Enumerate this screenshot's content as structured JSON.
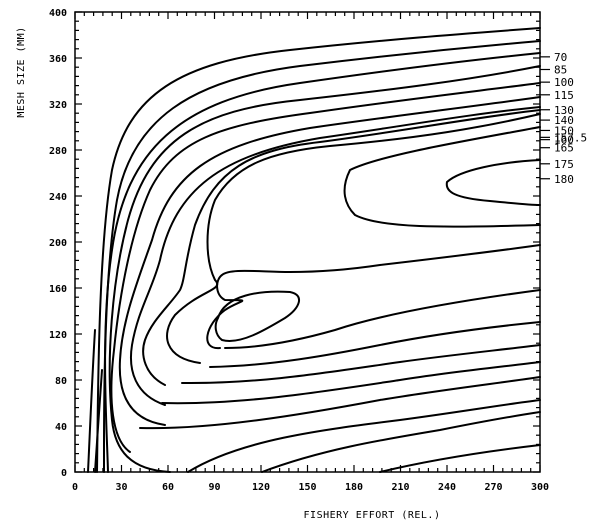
{
  "chart_data": {
    "type": "contour",
    "title": "",
    "xlabel": "FISHERY EFFORT (REL.)",
    "ylabel": "MESH SIZE (MM)",
    "xlim": [
      0,
      300
    ],
    "ylim": [
      0,
      400
    ],
    "x_ticks": [
      "0",
      "30",
      "60",
      "90",
      "120",
      "150",
      "180",
      "210",
      "240",
      "270",
      "300"
    ],
    "y_ticks": [
      "0",
      "40",
      "80",
      "120",
      "160",
      "200",
      "240",
      "280",
      "320",
      "360",
      "400"
    ],
    "grid": false,
    "contour_levels": [
      "70",
      "85",
      "100",
      "115",
      "130",
      "140",
      "150",
      "157.5",
      "160",
      "165",
      "175",
      "180"
    ],
    "level_label_positions_y": [
      361,
      350,
      339,
      328,
      315,
      306,
      297,
      291,
      289,
      282,
      268,
      255
    ],
    "features": {
      "peak_region": {
        "level": "180",
        "x_range": [
          240,
          300
        ],
        "y_center": 250
      },
      "local_maximum_ellipse": {
        "x_range": [
          100,
          140
        ],
        "y_center": 130
      }
    }
  },
  "labels": {
    "x_title": "FISHERY EFFORT (REL.)",
    "y_title": "MESH SIZE (MM)"
  }
}
